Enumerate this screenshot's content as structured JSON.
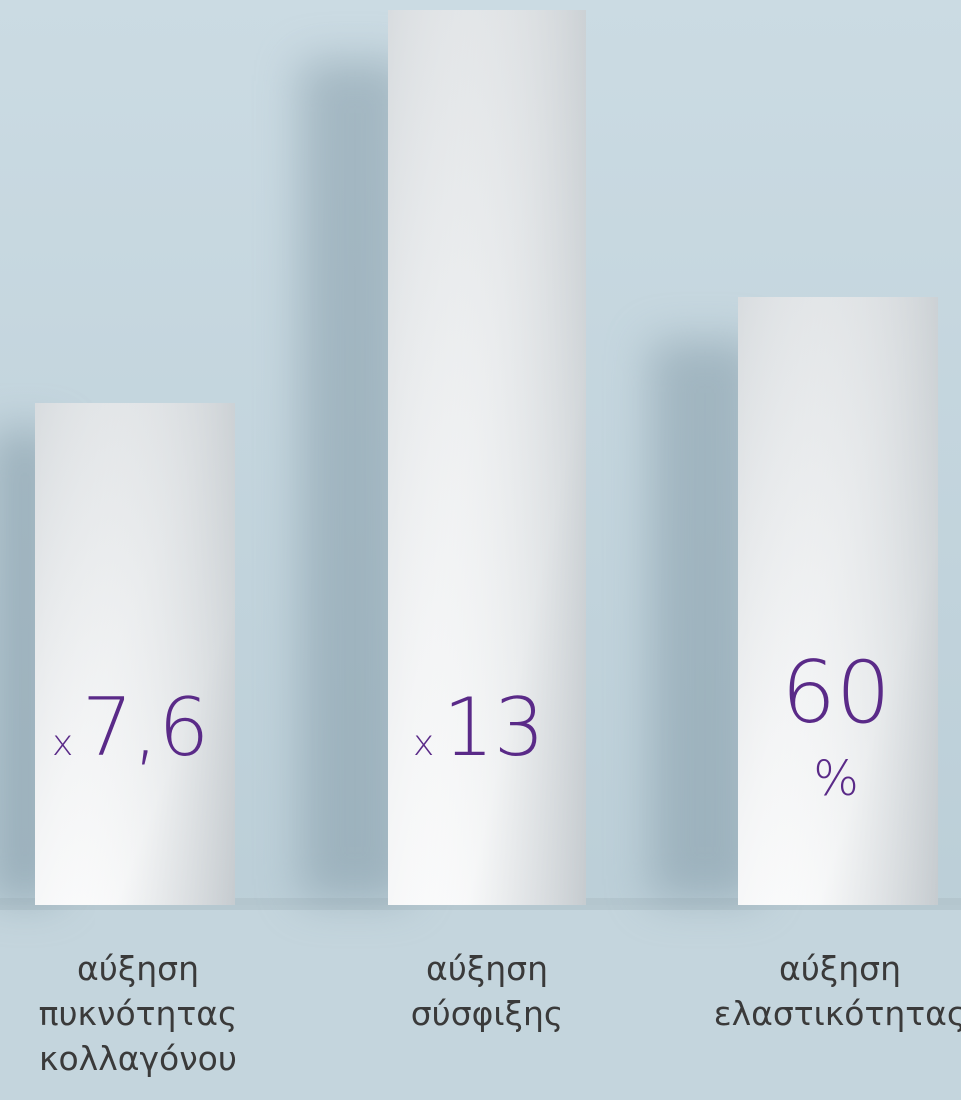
{
  "items": [
    {
      "prefix": "x",
      "value": "7,6",
      "label": [
        "αύξηση",
        "πυκνότητας",
        "κολλαγόνου"
      ]
    },
    {
      "prefix": "x",
      "value": "13",
      "label": [
        "αύξηση",
        "σύσφιξης"
      ]
    },
    {
      "value": "60",
      "unit": "%",
      "label": [
        "αύξηση",
        "ελαστικότητας"
      ]
    }
  ]
}
